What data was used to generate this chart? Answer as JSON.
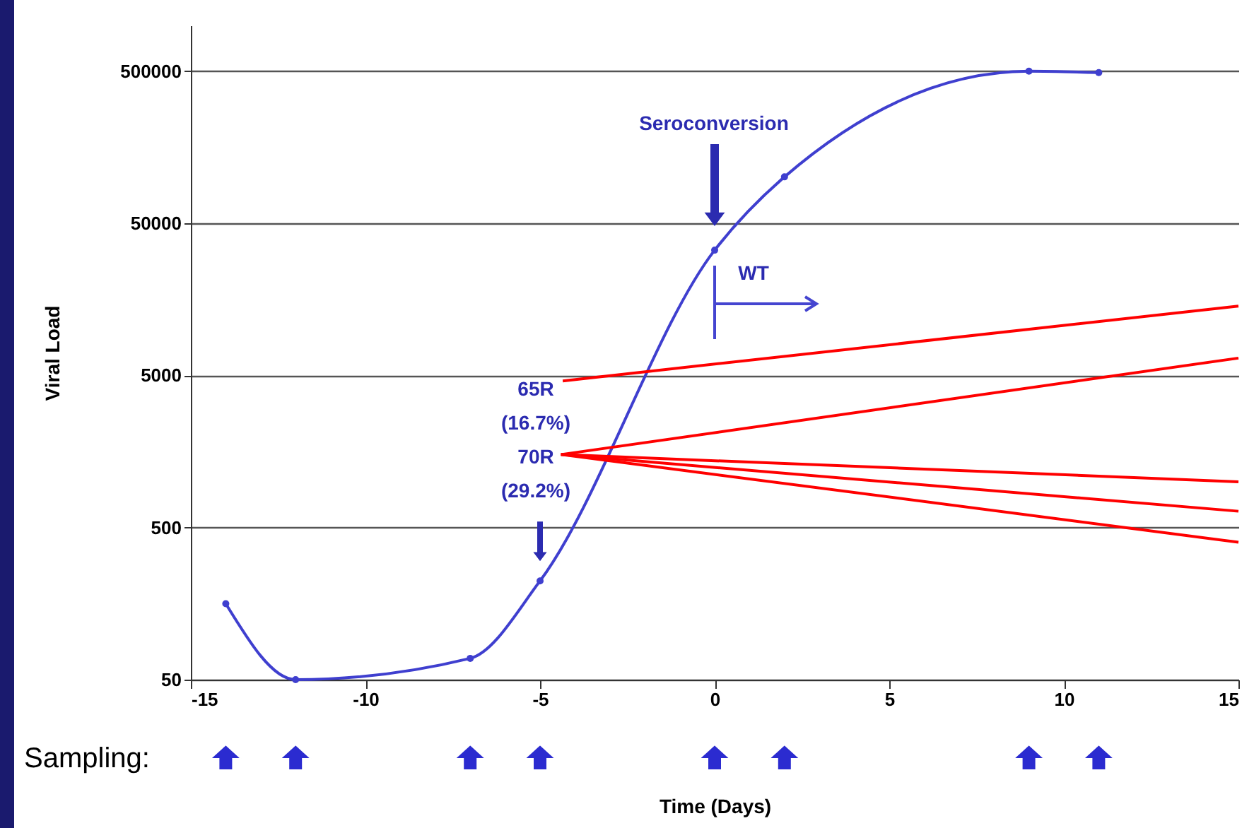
{
  "chart_data": {
    "type": "line",
    "xlabel": "Time (Days)",
    "ylabel": "Viral Load",
    "xlim": [
      -15,
      15
    ],
    "xticks": [
      -15,
      -10,
      -5,
      0,
      5,
      10,
      15
    ],
    "ylim": [
      50,
      1000000
    ],
    "yticks": [
      50,
      500,
      5000,
      50000,
      500000
    ],
    "log": "y",
    "grid": "y",
    "marker": "circle",
    "series": [
      {
        "color": "#3f3fcf",
        "x": [
          -14,
          -12,
          -7,
          -5,
          0,
          2,
          9,
          11
        ],
        "values": [
          158,
          50,
          69,
          223,
          33300,
          101000,
          500000,
          490000
        ]
      },
      {
        "color": "#ff0000",
        "marker": "none",
        "x": [
          -4.35,
          15
        ],
        "values": [
          4600,
          14300
        ]
      },
      {
        "color": "#ff0000",
        "marker": "none",
        "x": [
          -4.4,
          15
        ],
        "values": [
          1510,
          6500
        ]
      },
      {
        "color": "#ff0000",
        "marker": "none",
        "x": [
          -4.4,
          15
        ],
        "values": [
          1510,
          1000
        ]
      },
      {
        "color": "#ff0000",
        "marker": "none",
        "x": [
          -4.4,
          15
        ],
        "values": [
          1510,
          640
        ]
      },
      {
        "color": "#ff0000",
        "marker": "none",
        "x": [
          -4.4,
          15
        ],
        "values": [
          1510,
          400
        ]
      }
    ],
    "annotations": [
      "Seroconversion",
      "WT",
      "65R",
      "(16.7%)",
      "70R",
      "(29.2%)",
      "Sampling:"
    ]
  }
}
